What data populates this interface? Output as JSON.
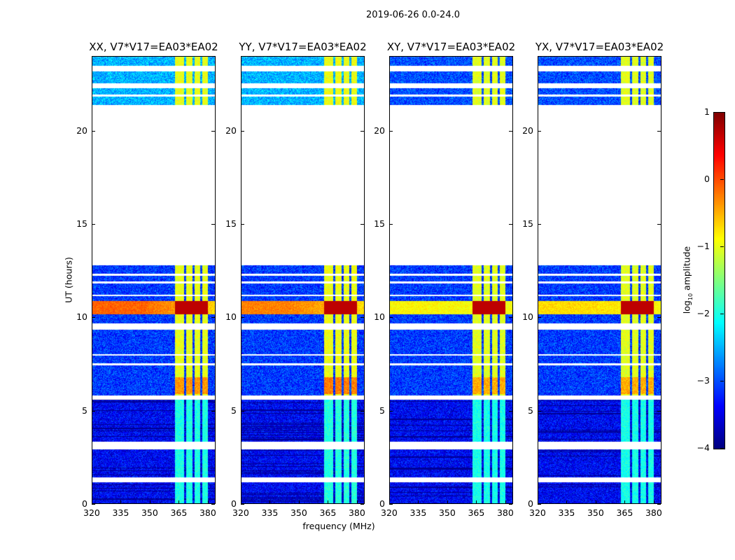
{
  "chart_data": {
    "type": "heatmap",
    "title": "2019-06-26 0.0-24.0",
    "xlabel": "frequency (MHz)",
    "ylabel": "UT (hours)",
    "xlim": [
      320,
      384
    ],
    "ylim": [
      0,
      24
    ],
    "xticks": [
      "320",
      "335",
      "350",
      "365",
      "380"
    ],
    "yticks": [
      "0",
      "5",
      "10",
      "15",
      "20"
    ],
    "panels": [
      {
        "title": "XX, V7*V17=EA03*EA02",
        "rfi_level": 0.7,
        "broad_level": 0.6
      },
      {
        "title": "YY, V7*V17=EA03*EA02",
        "rfi_level": 0.8,
        "broad_level": 0.5
      },
      {
        "title": "XY, V7*V17=EA03*EA02",
        "rfi_level": 0.6,
        "broad_level": 0.1
      },
      {
        "title": "YX, V7*V17=EA03*EA02",
        "rfi_level": 0.6,
        "broad_level": 0.2
      }
    ],
    "colorbar": {
      "label": "log10 amplitude",
      "label_main": "log",
      "label_sub": "10",
      "label_rest": " amplitude",
      "clim": [
        -4,
        1
      ],
      "ticks": [
        "1",
        "0",
        "−1",
        "−2",
        "−3",
        "−4"
      ],
      "colormap": "jet"
    },
    "data_ranges_hours": [
      [
        0,
        12.8
      ],
      [
        21.4,
        24
      ]
    ],
    "flagged_ranges_hours": [
      [
        1.2,
        1.45
      ],
      [
        2.95,
        3.35
      ],
      [
        5.6,
        5.85
      ],
      [
        7.45,
        7.55
      ],
      [
        7.98,
        8.05
      ],
      [
        9.35,
        9.7
      ],
      [
        11.15,
        11.25
      ],
      [
        11.85,
        11.95
      ],
      [
        12.25,
        12.35
      ],
      [
        21.85,
        21.95
      ],
      [
        22.3,
        22.55
      ],
      [
        23.2,
        23.5
      ]
    ],
    "rfi_band_mhz": [
      363,
      380
    ],
    "broadband_rfi_hours": [
      10.2,
      10.9
    ],
    "background_level": -3.1
  }
}
